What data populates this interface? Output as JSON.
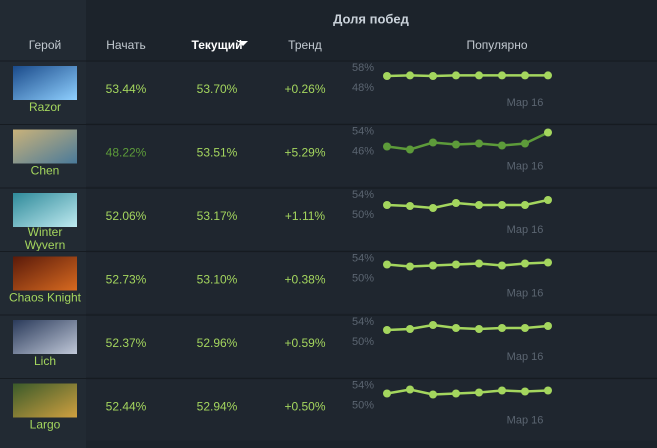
{
  "header": {
    "group_title": "Доля побед",
    "columns": [
      "Герой",
      "Начать",
      "Текущий",
      "Тренд",
      "Популярно"
    ]
  },
  "table": {
    "rows": [
      {
        "hero": [
          "Razor"
        ],
        "start": "53.44%",
        "current": "53.70%",
        "trend": "+0.26%",
        "spark": {
          "yticks": [
            {
              "value": 58,
              "label": "58%"
            },
            {
              "value": 48,
              "label": "48%"
            }
          ],
          "values": [
            54,
            54.3,
            54,
            54.3,
            54.3,
            54.3,
            54.3,
            54.3
          ],
          "date": "Мар 16"
        }
      },
      {
        "hero": [
          "Chen"
        ],
        "start": "48.22%",
        "current": "53.51%",
        "trend": "+5.29%",
        "spark": {
          "yticks": [
            {
              "value": 54,
              "label": "54%"
            },
            {
              "value": 46,
              "label": "46%"
            }
          ],
          "values": [
            48,
            46.8,
            49.6,
            48.8,
            49.2,
            48.4,
            49.2,
            53.6
          ],
          "date": "Мар 16"
        }
      },
      {
        "hero": [
          "Winter",
          "Wyvern"
        ],
        "start": "52.06%",
        "current": "53.17%",
        "trend": "+1.11%",
        "spark": {
          "yticks": [
            {
              "value": 54,
              "label": "54%"
            },
            {
              "value": 50,
              "label": "50%"
            }
          ],
          "values": [
            52,
            51.8,
            51.4,
            52.4,
            52,
            52,
            52,
            53
          ],
          "date": "Мар 16"
        }
      },
      {
        "hero": [
          "Chaos Knight"
        ],
        "start": "52.73%",
        "current": "53.10%",
        "trend": "+0.38%",
        "spark": {
          "yticks": [
            {
              "value": 54,
              "label": "54%"
            },
            {
              "value": 50,
              "label": "50%"
            }
          ],
          "values": [
            52.8,
            52.4,
            52.6,
            52.8,
            53,
            52.6,
            53,
            53.2
          ],
          "date": "Мар 16"
        }
      },
      {
        "hero": [
          "Lich"
        ],
        "start": "52.37%",
        "current": "52.96%",
        "trend": "+0.59%",
        "spark": {
          "yticks": [
            {
              "value": 54,
              "label": "54%"
            },
            {
              "value": 50,
              "label": "50%"
            }
          ],
          "values": [
            52.4,
            52.6,
            53.4,
            52.8,
            52.6,
            52.8,
            52.8,
            53.2
          ],
          "date": "Мар 16"
        }
      },
      {
        "hero": [
          "Largo"
        ],
        "start": "52.44%",
        "current": "52.94%",
        "trend": "+0.50%",
        "spark": {
          "yticks": [
            {
              "value": 54,
              "label": "54%"
            },
            {
              "value": 50,
              "label": "50%"
            }
          ],
          "values": [
            52.4,
            53.2,
            52.2,
            52.4,
            52.6,
            53,
            52.8,
            53
          ],
          "date": "Мар 16"
        }
      }
    ]
  }
}
